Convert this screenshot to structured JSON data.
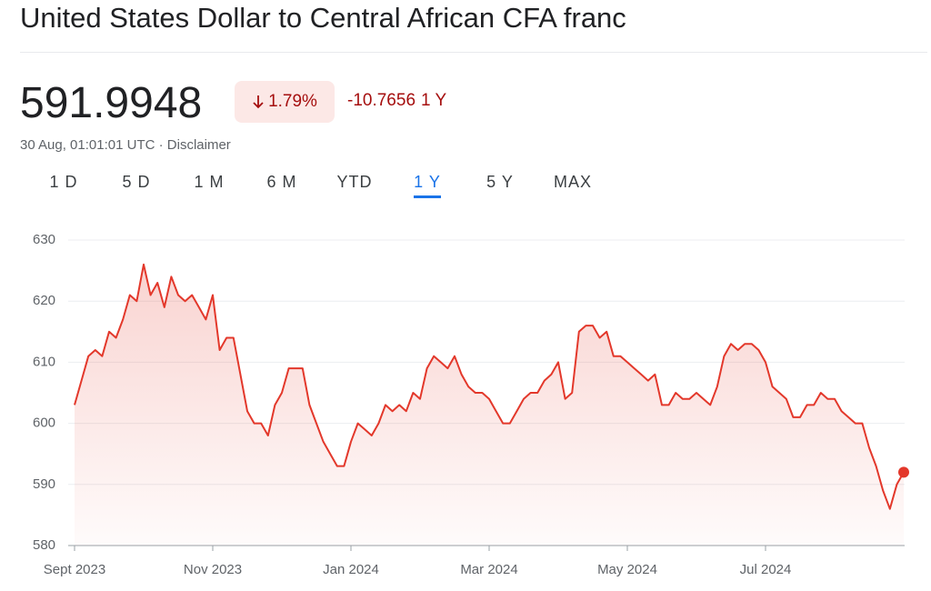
{
  "header": {
    "title": "United States Dollar to Central African CFA franc",
    "price": "591.9948",
    "change_percent": "1.79%",
    "change_value": "-10.7656",
    "change_period": "1 Y",
    "timestamp": "30 Aug, 01:01:01 UTC",
    "disclaimer": "Disclaimer",
    "tabs": [
      "1 D",
      "5 D",
      "1 M",
      "6 M",
      "YTD",
      "1 Y",
      "5 Y",
      "MAX"
    ],
    "selected_tab": 5
  },
  "chart_data": {
    "type": "line",
    "color": "#e3382b",
    "grid": true,
    "categories": [
      "Sept 2023",
      null,
      null,
      null,
      null,
      null,
      null,
      null,
      null,
      null,
      null,
      null,
      null,
      null,
      null,
      null,
      null,
      null,
      null,
      null,
      "Nov 2023",
      null,
      null,
      null,
      null,
      null,
      null,
      null,
      null,
      null,
      null,
      null,
      null,
      null,
      null,
      null,
      null,
      null,
      null,
      null,
      "Jan 2024",
      null,
      null,
      null,
      null,
      null,
      null,
      null,
      null,
      null,
      null,
      null,
      null,
      null,
      null,
      null,
      null,
      null,
      null,
      null,
      "Mar 2024",
      null,
      null,
      null,
      null,
      null,
      null,
      null,
      null,
      null,
      null,
      null,
      null,
      null,
      null,
      null,
      null,
      null,
      null,
      null,
      "May 2024",
      null,
      null,
      null,
      null,
      null,
      null,
      null,
      null,
      null,
      null,
      null,
      null,
      null,
      null,
      null,
      null,
      null,
      null,
      null,
      "Jul 2024",
      null,
      null,
      null,
      null,
      null,
      null,
      null,
      null,
      null,
      null,
      null,
      null,
      null,
      null,
      null,
      null,
      null,
      null,
      null,
      null
    ],
    "values": [
      603,
      607,
      611,
      612,
      611,
      615,
      614,
      617,
      621,
      620,
      626,
      621,
      623,
      619,
      624,
      621,
      620,
      621,
      619,
      617,
      621,
      612,
      614,
      614,
      608,
      602,
      600,
      600,
      598,
      603,
      605,
      609,
      609,
      609,
      603,
      600,
      597,
      595,
      593,
      593,
      597,
      600,
      599,
      598,
      600,
      603,
      602,
      603,
      602,
      605,
      604,
      609,
      611,
      610,
      609,
      611,
      608,
      606,
      605,
      605,
      604,
      602,
      600,
      600,
      602,
      604,
      605,
      605,
      607,
      608,
      610,
      604,
      605,
      615,
      616,
      616,
      614,
      615,
      611,
      611,
      610,
      609,
      608,
      607,
      608,
      603,
      603,
      605,
      604,
      604,
      605,
      604,
      603,
      606,
      611,
      613,
      612,
      613,
      613,
      612,
      610,
      606,
      605,
      604,
      601,
      601,
      603,
      603,
      605,
      604,
      604,
      602,
      601,
      600,
      600,
      596,
      593,
      589,
      586,
      590,
      592
    ],
    "ylim": [
      580,
      630
    ],
    "yticks": [
      580,
      590,
      600,
      610,
      620,
      630
    ]
  }
}
